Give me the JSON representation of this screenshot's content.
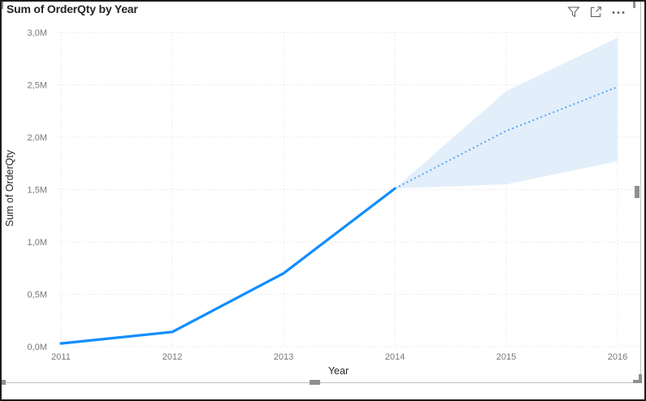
{
  "visual": {
    "title": "Sum of OrderQty by Year",
    "header_icons": [
      {
        "name": "filter-icon"
      },
      {
        "name": "focus-mode-icon"
      },
      {
        "name": "more-options-icon"
      }
    ],
    "selected": true
  },
  "chart_data": {
    "type": "line",
    "title": "Sum of OrderQty by Year",
    "xlabel": "Year",
    "ylabel": "Sum of OrderQty",
    "xlim": [
      2011,
      2016
    ],
    "ylim": [
      0,
      3000000
    ],
    "grid": true,
    "legend": "none",
    "x_ticks": [
      "2011",
      "2012",
      "2013",
      "2014",
      "2015",
      "2016"
    ],
    "y_ticks": [
      "0,0M",
      "0,5M",
      "1,0M",
      "1,5M",
      "2,0M",
      "2,5M",
      "3,0M"
    ],
    "series": [
      {
        "name": "history",
        "style": "solid",
        "x": [
          2011,
          2012,
          2013,
          2014
        ],
        "y": [
          30000,
          140000,
          700000,
          1510000
        ]
      },
      {
        "name": "forecast",
        "style": "dotted",
        "x": [
          2014,
          2015,
          2016
        ],
        "y": [
          1510000,
          2060000,
          2480000
        ]
      }
    ],
    "confidence_band": {
      "x": [
        2014,
        2015,
        2016
      ],
      "upper": [
        1510000,
        2440000,
        2950000
      ],
      "lower": [
        1510000,
        1550000,
        1770000
      ]
    },
    "colors": {
      "line": "#118DFF",
      "forecast_line": "#4BA0F8",
      "band": "#E2EEFA",
      "grid": "#DEDEDE",
      "tick_label": "#777777",
      "axis_title": "#2B2A29",
      "title": "#252423"
    }
  }
}
